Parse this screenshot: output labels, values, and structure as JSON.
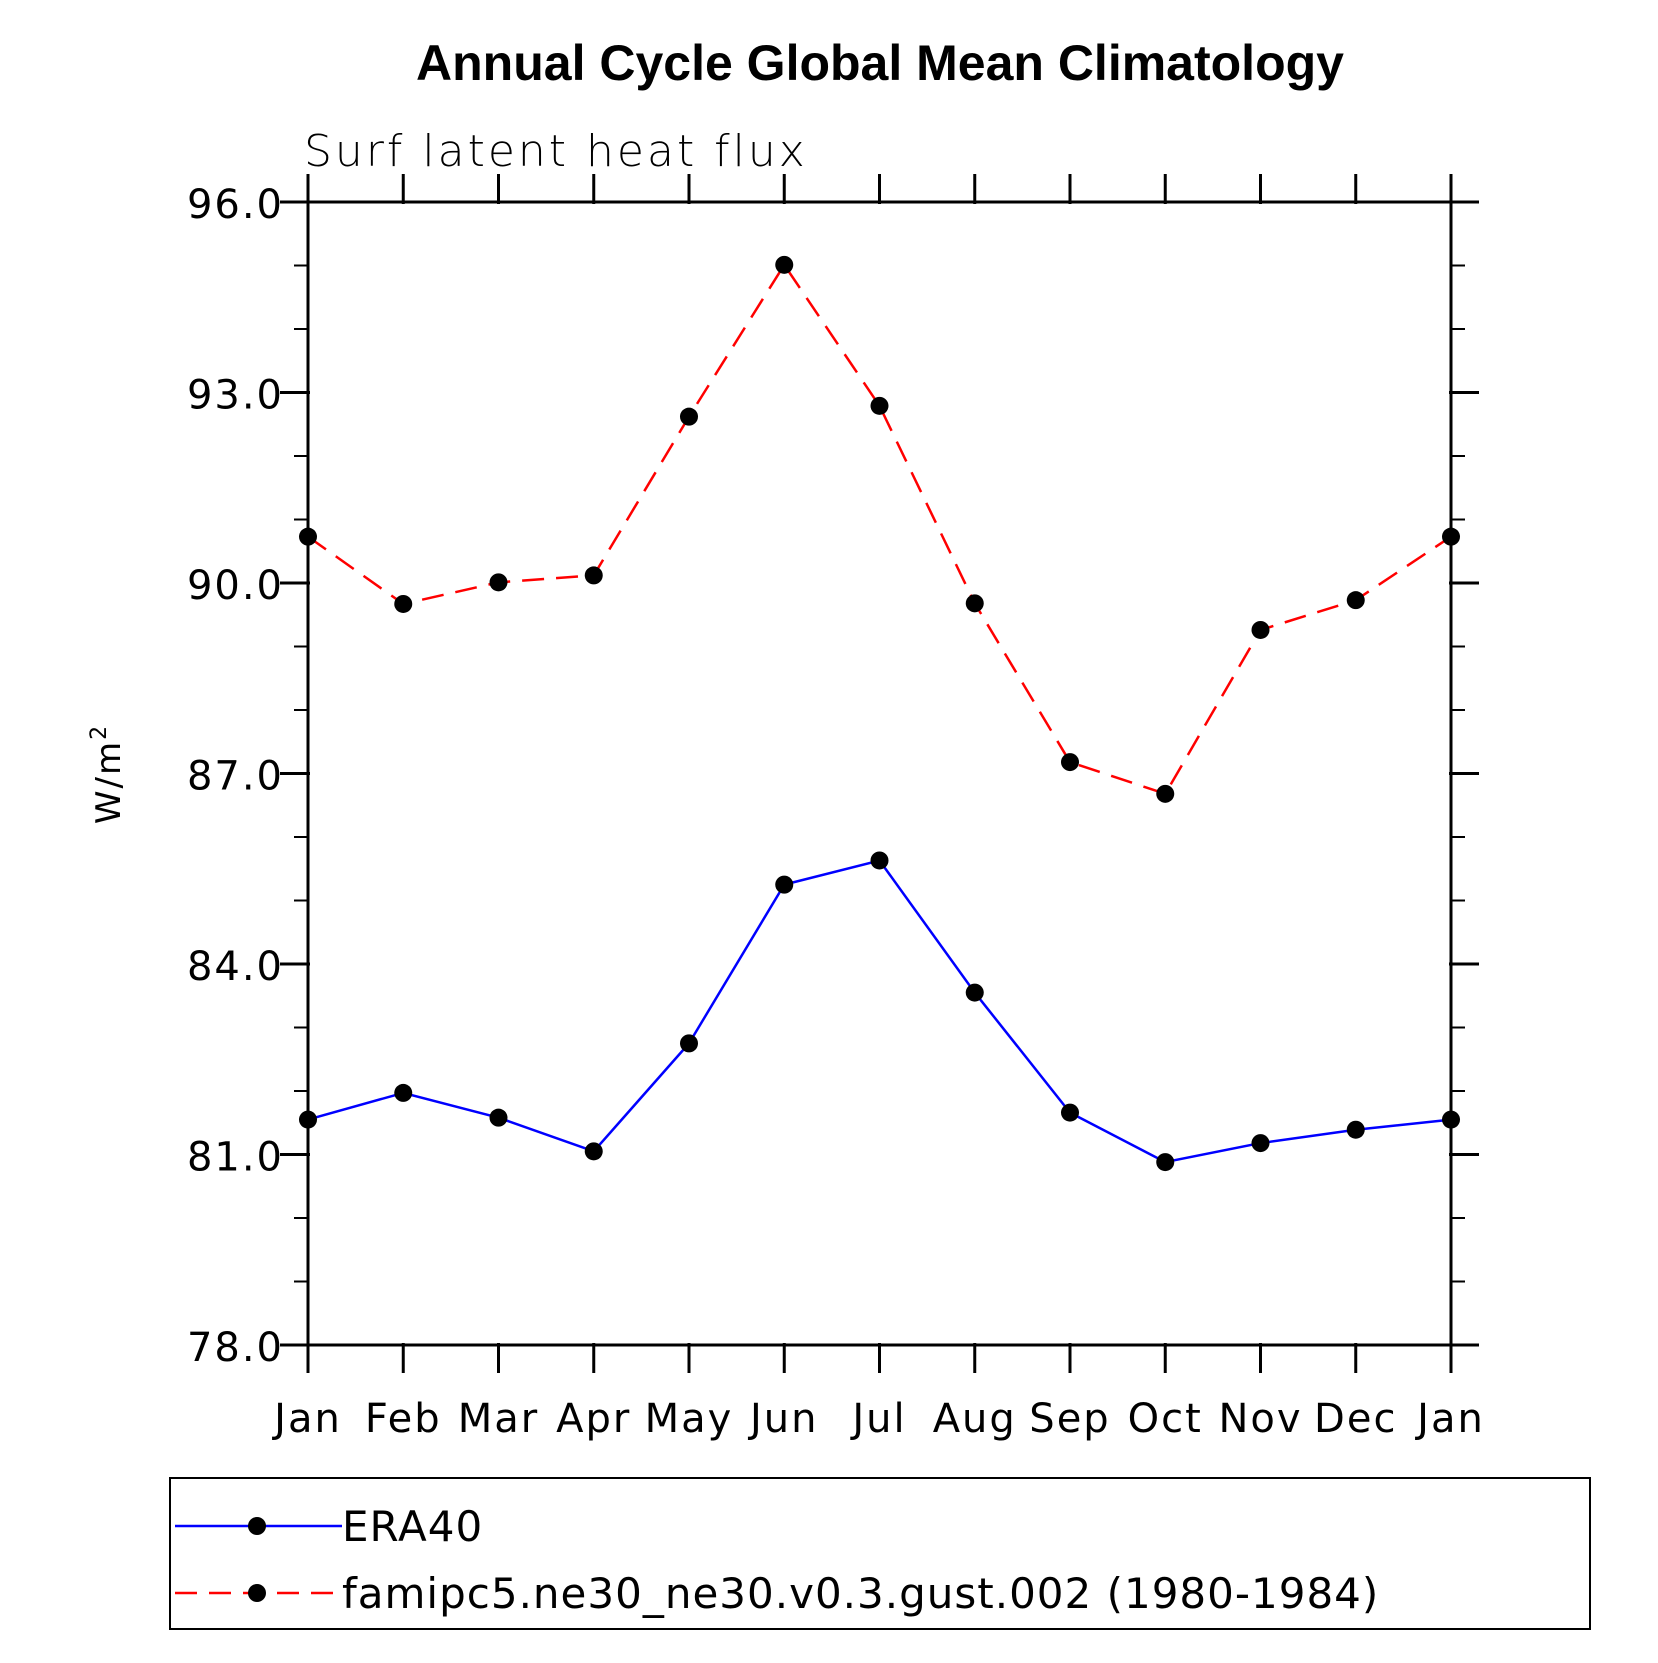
{
  "chart_data": {
    "type": "line",
    "title": "Annual Cycle Global Mean Climatology",
    "subtitle": "Surf latent heat flux",
    "ylabel_base": "W/m",
    "ylabel_sup": "2",
    "xlabel": "",
    "categories": [
      "Jan",
      "Feb",
      "Mar",
      "Apr",
      "May",
      "Jun",
      "Jul",
      "Aug",
      "Sep",
      "Oct",
      "Nov",
      "Dec",
      "Jan"
    ],
    "ylim": [
      78.0,
      96.0
    ],
    "yticks": [
      78.0,
      81.0,
      84.0,
      87.0,
      90.0,
      93.0,
      96.0
    ],
    "ytick_labels": [
      "78.0",
      "81.0",
      "84.0",
      "87.0",
      "90.0",
      "93.0",
      "96.0"
    ],
    "grid": false,
    "legend_position": "bottom",
    "series": [
      {
        "name": "ERA40",
        "color": "#0000ff",
        "line_style": "solid",
        "marker": "filled-circle",
        "values": [
          81.55,
          81.97,
          81.58,
          81.05,
          82.75,
          85.25,
          85.63,
          83.55,
          81.66,
          80.88,
          81.18,
          81.39,
          81.55
        ]
      },
      {
        "name": "famipc5.ne30_ne30.v0.3.gust.002 (1980-1984)",
        "color": "#ff0000",
        "line_style": "dashed",
        "marker": "filled-circle",
        "values": [
          90.73,
          89.67,
          90.01,
          90.12,
          92.62,
          95.01,
          92.79,
          89.68,
          87.18,
          86.68,
          89.26,
          89.73,
          90.73
        ]
      }
    ]
  }
}
